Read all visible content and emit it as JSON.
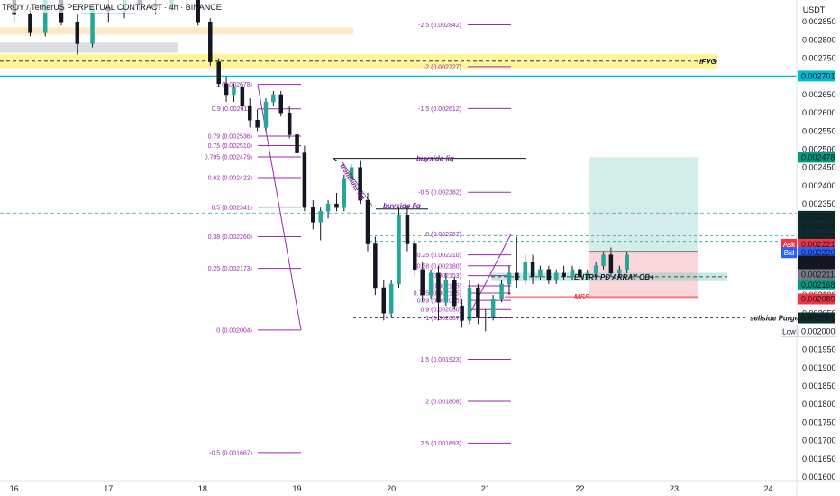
{
  "chart_data": {
    "type": "candlestick",
    "title": "TROY / TetherUS PERPETUAL CONTRACT",
    "timeframe": "4h",
    "exchange": "BINANCE",
    "currency": "USDT",
    "grid": false,
    "y_range": [
      0.00159,
      0.00291
    ],
    "y_ticks": [
      "0.002850",
      "0.002800",
      "0.002750",
      "0.002700",
      "0.002650",
      "0.002600",
      "0.002550",
      "0.002500",
      "0.002450",
      "0.002400",
      "0.002350",
      "0.002300",
      "0.002250",
      "0.002200",
      "0.002150",
      "0.002100",
      "0.002050",
      "0.002000",
      "0.001950",
      "0.001900",
      "0.001850",
      "0.001800",
      "0.001750",
      "0.001700",
      "0.001650",
      "0.001600"
    ],
    "x_ticks": [
      "16",
      "17",
      "18",
      "19",
      "20",
      "21",
      "22",
      "23",
      "24"
    ],
    "x_range": [
      15.85,
      24.3
    ],
    "price_badges": [
      {
        "label": "",
        "value": "0.002701",
        "bg": "#00bcd4",
        "fg": "#ffffff",
        "price": 0.002701
      },
      {
        "label": "",
        "value": "0.002478",
        "bg": "#089981",
        "fg": "#ffffff",
        "price": 0.002478
      },
      {
        "label": "",
        "value": "0.002316",
        "bg": "#0d2b2b",
        "fg": "#ffffff",
        "price": 0.002316
      },
      {
        "label": "",
        "value": "0.002249",
        "bg": "#0d2b2b",
        "fg": "#ffffff",
        "price": 0.002289
      },
      {
        "label": "",
        "value": "0.002235",
        "bg": "#0d2b2b",
        "fg": "#ffffff",
        "price": 0.002262
      },
      {
        "label": "Ask",
        "value": "0.002221",
        "bg": "#f23645",
        "fg": "#ffffff",
        "price": 0.002239
      },
      {
        "label": "Bid",
        "value": "0.002220",
        "bg": "#2962ff",
        "fg": "#ffffff",
        "price": 0.002216
      },
      {
        "label": "",
        "value": "0.002220",
        "bg": "#131722",
        "fg": "#ffffff",
        "price": 0.002193
      },
      {
        "label": "",
        "value": "44:24",
        "bg": "#131722",
        "fg": "#ffffff",
        "price": 0.002176
      },
      {
        "label": "",
        "value": "0.002211",
        "bg": "#787b86",
        "fg": "#ffffff",
        "price": 0.002156
      },
      {
        "label": "",
        "value": "0.002168",
        "bg": "#089981",
        "fg": "#ffffff",
        "price": 0.002128
      },
      {
        "label": "",
        "value": "0.002089",
        "bg": "#f23645",
        "fg": "#ffffff",
        "price": 0.002089
      },
      {
        "label": "",
        "value": "0.002037",
        "bg": "#0d2b2b",
        "fg": "#ffffff",
        "price": 0.002037
      },
      {
        "label": "Low",
        "value": "0.002000",
        "bg": "#ffffff",
        "fg": "#131722",
        "price": 0.002
      }
    ],
    "fib_left": {
      "high_price": 0.002678,
      "low_price": 0.002004,
      "levels": [
        {
          "label": "1 (0.002678)",
          "price": 0.002678
        },
        {
          "label": "0.9 (0.002611)",
          "price": 0.002611
        },
        {
          "label": "0.79 (0.002536)",
          "price": 0.002536
        },
        {
          "label": "0.75 (0.002510)",
          "price": 0.00251
        },
        {
          "label": "0.705 (0.002479)",
          "price": 0.002479
        },
        {
          "label": "0.62 (0.002422)",
          "price": 0.002422
        },
        {
          "label": "0.5 (0.002341)",
          "price": 0.002341
        },
        {
          "label": "0.38 (0.002260)",
          "price": 0.00226
        },
        {
          "label": "0.25 (0.002173)",
          "price": 0.002173
        },
        {
          "label": "0 (0.002004)",
          "price": 0.002004
        },
        {
          "label": "-0.5 (0.001667)",
          "price": 0.001667
        }
      ]
    },
    "fib_right": {
      "levels": [
        {
          "label": "-2.5 (0.002842)",
          "price": 0.002842
        },
        {
          "label": "-2 (0.002727)",
          "price": 0.002727
        },
        {
          "label": "-1.5 (0.002612)",
          "price": 0.002612
        },
        {
          "label": "-0.5 (0.002382)",
          "price": 0.002382
        },
        {
          "label": "0 (0.002267)",
          "price": 0.002267
        },
        {
          "label": "0.25 (0.002210)",
          "price": 0.00221
        },
        {
          "label": "0.38 (0.002180)",
          "price": 0.00218
        },
        {
          "label": "(0.002153)",
          "price": 0.002153
        },
        {
          "label": "(0.002125)",
          "price": 0.002125
        },
        {
          "label": "0.705 (0.002105)",
          "price": 0.002105
        },
        {
          "label": "0.79 (0.002085)",
          "price": 0.002085
        },
        {
          "label": "0.9 (0.002060)",
          "price": 0.00206
        },
        {
          "label": "1 (0.002037)",
          "price": 0.002037
        },
        {
          "label": "1.5 (0.001923)",
          "price": 0.001923
        },
        {
          "label": "2 (0.001808)",
          "price": 0.001808
        },
        {
          "label": "2.5 (0.001693)",
          "price": 0.001693
        }
      ]
    },
    "annotations": [
      {
        "text": "iFVG",
        "color": "#131722"
      },
      {
        "text": "buyside liq",
        "color": "#7b1fa2"
      },
      {
        "text": "buyside liq",
        "color": "#7b1fa2"
      },
      {
        "text": "trendline liq",
        "color": "#7b1fa2"
      },
      {
        "text": "ENTRY PD ARRAY OB+",
        "color": "#131722"
      },
      {
        "text": "MSS",
        "color": "#f23645"
      },
      {
        "text": "sellside Purge",
        "color": "#131722"
      }
    ],
    "candles": [
      [
        16.0,
        0.00293,
        0.00294,
        0.00285,
        0.00287
      ],
      [
        16.17,
        0.00287,
        0.00289,
        0.00281,
        0.00282
      ],
      [
        16.33,
        0.00282,
        0.00293,
        0.00281,
        0.00292
      ],
      [
        16.5,
        0.00292,
        0.00294,
        0.00284,
        0.00285
      ],
      [
        16.67,
        0.00285,
        0.00287,
        0.00276,
        0.00279
      ],
      [
        16.83,
        0.00279,
        0.0029,
        0.00278,
        0.00289
      ],
      [
        17.0,
        0.00289,
        0.00292,
        0.00285,
        0.00288
      ],
      [
        17.17,
        0.00288,
        0.00294,
        0.00286,
        0.00292
      ],
      [
        17.33,
        0.00292,
        0.00294,
        0.00288,
        0.0029
      ],
      [
        17.5,
        0.0029,
        0.00293,
        0.00287,
        0.00289
      ],
      [
        17.67,
        0.00289,
        0.00294,
        0.00288,
        0.00292
      ],
      [
        17.83,
        0.00292,
        0.00294,
        0.00289,
        0.00293
      ],
      [
        17.95,
        0.00293,
        0.00293,
        0.00284,
        0.00285
      ],
      [
        18.08,
        0.00285,
        0.00286,
        0.00273,
        0.00274
      ],
      [
        18.17,
        0.00274,
        0.00275,
        0.00267,
        0.00268
      ],
      [
        18.25,
        0.00268,
        0.0027,
        0.00263,
        0.00265
      ],
      [
        18.33,
        0.00265,
        0.00268,
        0.00263,
        0.00267
      ],
      [
        18.42,
        0.00267,
        0.00268,
        0.00261,
        0.00262
      ],
      [
        18.5,
        0.00262,
        0.00264,
        0.00256,
        0.00258
      ],
      [
        18.58,
        0.00258,
        0.00261,
        0.00255,
        0.00256
      ],
      [
        18.67,
        0.00256,
        0.00264,
        0.00255,
        0.00263
      ],
      [
        18.75,
        0.00263,
        0.00266,
        0.00262,
        0.00265
      ],
      [
        18.83,
        0.00265,
        0.00266,
        0.00259,
        0.0026
      ],
      [
        18.92,
        0.0026,
        0.00262,
        0.00253,
        0.00254
      ],
      [
        19.0,
        0.00254,
        0.00256,
        0.00248,
        0.00249
      ],
      [
        19.08,
        0.00249,
        0.00251,
        0.00233,
        0.00234
      ],
      [
        19.17,
        0.00234,
        0.00236,
        0.00228,
        0.0023
      ],
      [
        19.25,
        0.0023,
        0.00234,
        0.00225,
        0.00233
      ],
      [
        19.33,
        0.00233,
        0.00236,
        0.00231,
        0.00235
      ],
      [
        19.42,
        0.00235,
        0.00238,
        0.00233,
        0.00234
      ],
      [
        19.5,
        0.00234,
        0.00243,
        0.00233,
        0.00242
      ],
      [
        19.58,
        0.00242,
        0.00246,
        0.0024,
        0.00245
      ],
      [
        19.67,
        0.00245,
        0.00247,
        0.00235,
        0.00236
      ],
      [
        19.75,
        0.00236,
        0.00238,
        0.00222,
        0.00224
      ],
      [
        19.83,
        0.00224,
        0.00226,
        0.0021,
        0.00212
      ],
      [
        19.92,
        0.00212,
        0.00214,
        0.00203,
        0.00205
      ],
      [
        20.0,
        0.00205,
        0.00214,
        0.00204,
        0.00213
      ],
      [
        20.08,
        0.00213,
        0.00234,
        0.00212,
        0.00232
      ],
      [
        20.17,
        0.00232,
        0.00234,
        0.00222,
        0.00224
      ],
      [
        20.25,
        0.00224,
        0.00225,
        0.00215,
        0.00217
      ],
      [
        20.33,
        0.00217,
        0.00219,
        0.00208,
        0.0021
      ],
      [
        20.42,
        0.0021,
        0.00217,
        0.00209,
        0.00216
      ],
      [
        20.5,
        0.00216,
        0.00218,
        0.00203,
        0.00208
      ],
      [
        20.58,
        0.00208,
        0.00216,
        0.00207,
        0.00214
      ],
      [
        20.67,
        0.00214,
        0.00215,
        0.00206,
        0.00207
      ],
      [
        20.75,
        0.00207,
        0.00209,
        0.00201,
        0.00203
      ],
      [
        20.83,
        0.00203,
        0.00214,
        0.00202,
        0.00212
      ],
      [
        20.92,
        0.00212,
        0.00213,
        0.00202,
        0.00204
      ],
      [
        21.0,
        0.00204,
        0.00206,
        0.002,
        0.00204
      ],
      [
        21.08,
        0.00204,
        0.0021,
        0.00203,
        0.00209
      ],
      [
        21.17,
        0.00209,
        0.00214,
        0.00208,
        0.00213
      ],
      [
        21.25,
        0.00213,
        0.00218,
        0.0021,
        0.00216
      ],
      [
        21.33,
        0.00216,
        0.00226,
        0.00212,
        0.00214
      ],
      [
        21.42,
        0.00214,
        0.00221,
        0.00213,
        0.00219
      ],
      [
        21.5,
        0.00219,
        0.00221,
        0.00213,
        0.00215
      ],
      [
        21.58,
        0.00215,
        0.00218,
        0.00214,
        0.00217
      ],
      [
        21.67,
        0.00217,
        0.00218,
        0.00213,
        0.00214
      ],
      [
        21.75,
        0.00214,
        0.00217,
        0.00213,
        0.00216
      ],
      [
        21.83,
        0.00216,
        0.00218,
        0.00214,
        0.00215
      ],
      [
        21.92,
        0.00215,
        0.00218,
        0.00214,
        0.00217
      ],
      [
        22.0,
        0.00217,
        0.00218,
        0.00214,
        0.00215
      ],
      [
        22.08,
        0.00215,
        0.00217,
        0.00214,
        0.00216
      ],
      [
        22.17,
        0.00216,
        0.00219,
        0.00215,
        0.00218
      ],
      [
        22.25,
        0.00218,
        0.00222,
        0.00217,
        0.00221
      ],
      [
        22.33,
        0.00221,
        0.00223,
        0.00215,
        0.00216
      ],
      [
        22.42,
        0.00216,
        0.00218,
        0.00215,
        0.00217
      ],
      [
        22.5,
        0.00217,
        0.00222,
        0.00216,
        0.00221
      ]
    ]
  }
}
